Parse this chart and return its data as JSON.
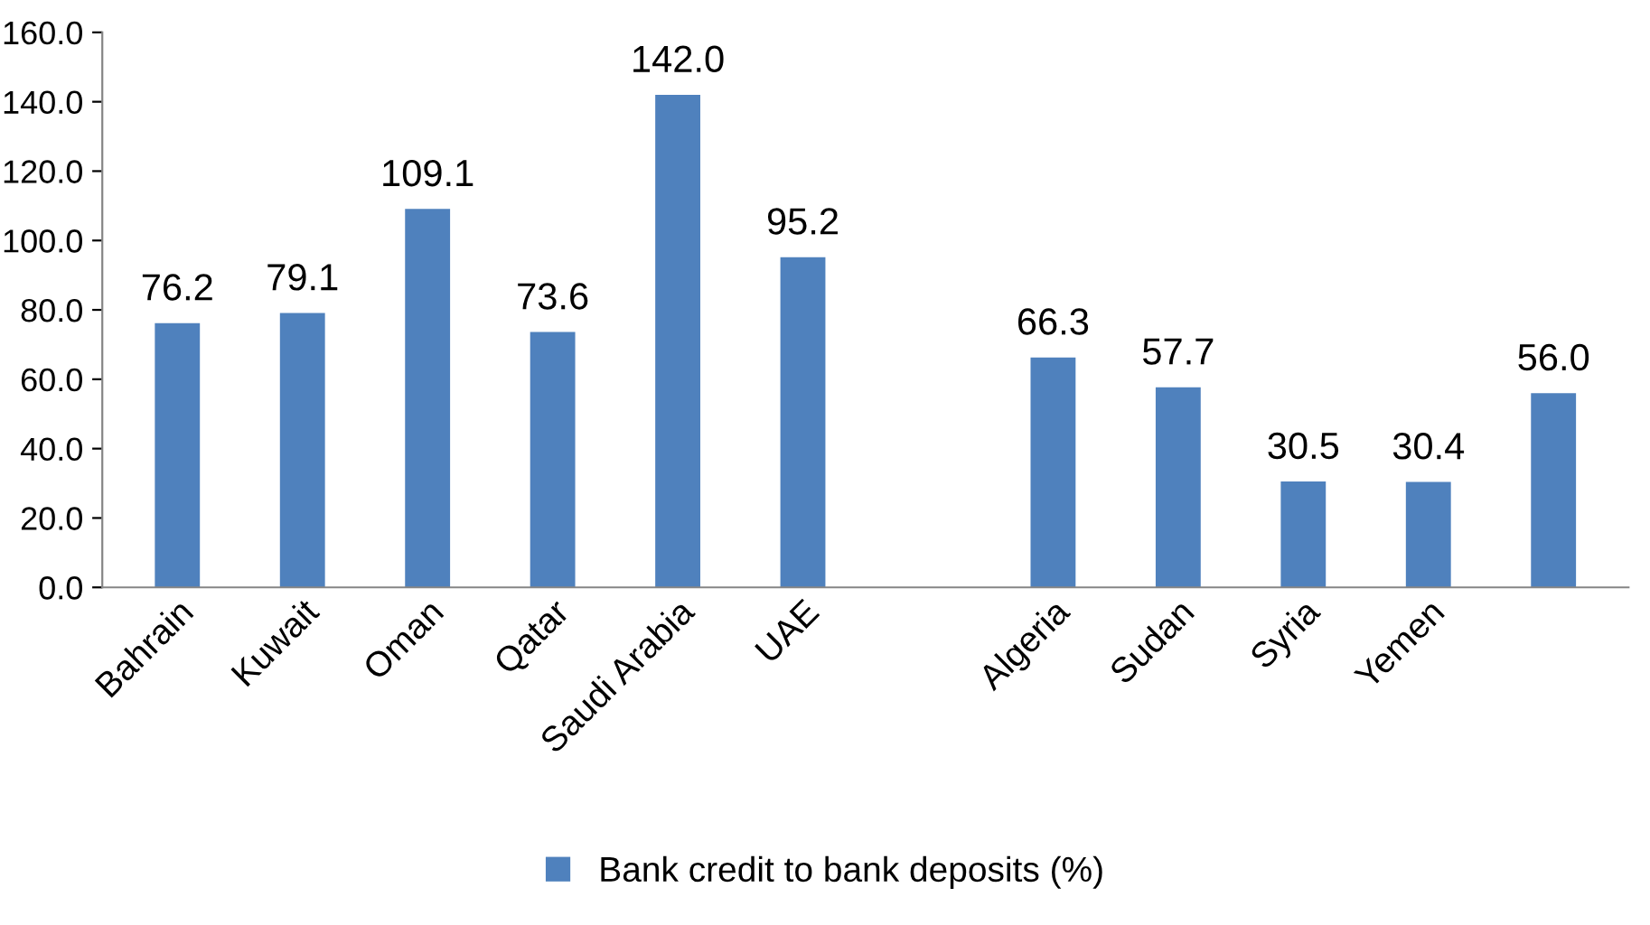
{
  "chart_data": {
    "type": "bar",
    "categories": [
      "Bahrain",
      "Kuwait",
      "Oman",
      "Qatar",
      "Saudi Arabia",
      "UAE",
      null,
      "Algeria",
      "Sudan",
      "Syria",
      "Yemen",
      null
    ],
    "series": [
      {
        "name": "Bank credit to bank deposits (%)",
        "color": "#4f81bd",
        "values": [
          76.2,
          79.1,
          109.1,
          73.6,
          142.0,
          95.2,
          null,
          66.3,
          57.7,
          30.5,
          30.4,
          56.0
        ],
        "value_labels": [
          "76.2",
          "79.1",
          "109.1",
          "73.6",
          "142.0",
          "95.2",
          null,
          "66.3",
          "57.7",
          "30.5",
          "30.4",
          "56.0"
        ]
      }
    ],
    "ylim": [
      0,
      160
    ],
    "yticks": [
      {
        "value": 0,
        "label": "0.0"
      },
      {
        "value": 20,
        "label": "20.0"
      },
      {
        "value": 40,
        "label": "40.0"
      },
      {
        "value": 60,
        "label": "60.0"
      },
      {
        "value": 80,
        "label": "80.0"
      },
      {
        "value": 100,
        "label": "100.0"
      },
      {
        "value": 120,
        "label": "120.0"
      },
      {
        "value": 140,
        "label": "140.0"
      },
      {
        "value": 160,
        "label": "160.0"
      }
    ],
    "grid": false,
    "legend": "bottom"
  }
}
